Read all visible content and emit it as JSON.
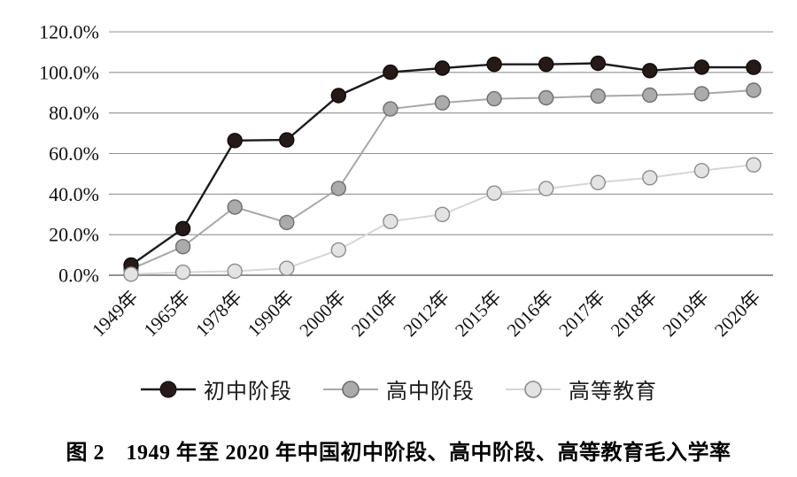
{
  "figure": {
    "caption": "图 2　1949 年至 2020 年中国初中阶段、高中阶段、高等教育毛入学率"
  },
  "chart_data": {
    "type": "line",
    "title": "",
    "xlabel": "",
    "ylabel": "",
    "categories": [
      "1949年",
      "1965年",
      "1978年",
      "1990年",
      "2000年",
      "2010年",
      "2012年",
      "2015年",
      "2016年",
      "2017年",
      "2018年",
      "2019年",
      "2020年"
    ],
    "series": [
      {
        "name": "初中阶段",
        "values": [
          5.0,
          23.0,
          66.4,
          66.7,
          88.6,
          100.1,
          102.1,
          104.0,
          104.0,
          104.5,
          100.9,
          102.6,
          102.5
        ],
        "line_color": "#1c1c1c",
        "marker_fill": "#251a18",
        "marker_stroke": "#0f0a0a",
        "line_width": 2.4,
        "marker_radius": 8
      },
      {
        "name": "高中阶段",
        "values": [
          3.0,
          14.1,
          33.6,
          26.0,
          42.8,
          82.0,
          85.0,
          87.0,
          87.5,
          88.3,
          88.8,
          89.5,
          91.2
        ],
        "line_color": "#a8a8a8",
        "marker_fill": "#ababab",
        "marker_stroke": "#6e6e6e",
        "line_width": 2,
        "marker_radius": 8
      },
      {
        "name": "高等教育",
        "values": [
          0.5,
          1.5,
          2.0,
          3.4,
          12.5,
          26.5,
          30.0,
          40.5,
          42.7,
          45.7,
          48.1,
          51.6,
          54.4
        ],
        "line_color": "#d6d6d6",
        "marker_fill": "#e3e3e3",
        "marker_stroke": "#8c8c8c",
        "line_width": 2,
        "marker_radius": 8
      }
    ],
    "ylim": [
      0,
      120
    ],
    "ytick_step": 20,
    "ytick_labels": [
      "0.0%",
      "20.0%",
      "40.0%",
      "60.0%",
      "80.0%",
      "100.0%",
      "120.0%"
    ],
    "grid": "horizontal-only",
    "gridline_color": "#909090",
    "axis_text_color": "#111111",
    "legend_position": "bottom",
    "background": "#ffffff",
    "draw_order": [
      1,
      0,
      2
    ]
  }
}
